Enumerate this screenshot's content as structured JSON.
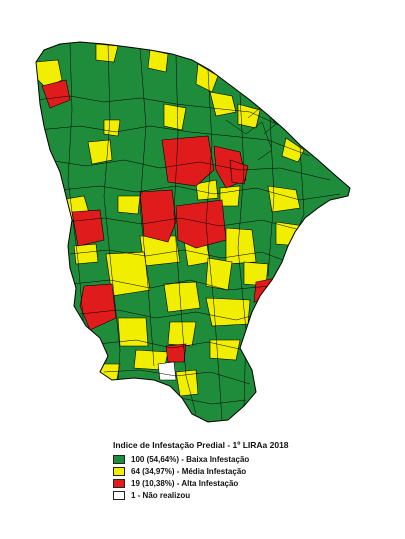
{
  "legend": {
    "title": "Indice de Infestação Predial - 1º LIRAa 2018",
    "items": [
      {
        "label": "100 (54,64%) - Baixa Infestação",
        "color": "#1e8c3a",
        "count": 100,
        "percent": 54.64
      },
      {
        "label": "64 (34,97%) - Média Infestação",
        "color": "#f2ee00",
        "count": 64,
        "percent": 34.97
      },
      {
        "label": "19 (10,38%) - Alta Infestação",
        "color": "#e01b1b",
        "count": 19,
        "percent": 10.38
      },
      {
        "label": "1 - Não realizou",
        "color": "#ffffff",
        "count": 1
      }
    ]
  },
  "colors": {
    "border": "#000000",
    "baixa": "#1e8c3a",
    "media": "#f2ee00",
    "alta": "#e01b1b",
    "nao": "#ffffff"
  }
}
